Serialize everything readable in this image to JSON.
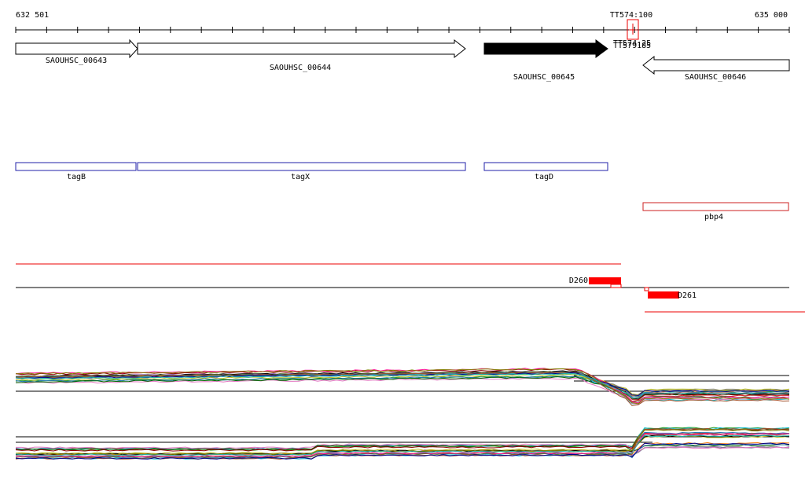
{
  "ruler": {
    "start_label": "632 501",
    "end_label": "635 000",
    "marker_label": "TT574:100",
    "overlap_labels": [
      "TT574:25",
      "TT579185"
    ]
  },
  "genes": [
    {
      "label": "SAOUHSC_00643"
    },
    {
      "label": "SAOUHSC_00644"
    },
    {
      "label": "SAOUHSC_00645"
    },
    {
      "label": "SAOUHSC_00646"
    }
  ],
  "gene_names": [
    {
      "label": "tagB"
    },
    {
      "label": "tagX"
    },
    {
      "label": "tagD"
    },
    {
      "label": "pbp4"
    }
  ],
  "segments": [
    {
      "label": "D260"
    },
    {
      "label": "D261"
    }
  ]
}
